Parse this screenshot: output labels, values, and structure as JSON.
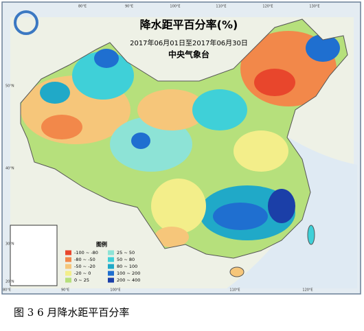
{
  "title": "降水距平百分率(%)",
  "date_range": "2017年06月01日至2017年06月30日",
  "agency": "中央气象台",
  "top_lon_labels": [
    "80°E",
    "90°E",
    "100°E",
    "110°E",
    "120°E",
    "130°E"
  ],
  "bottom_lon_labels": [
    "80°E",
    "90°E",
    "100°E",
    "110°E",
    "120°E"
  ],
  "lat_labels": [
    "50°N",
    "40°N",
    "30°N",
    "20°N"
  ],
  "legend": {
    "title": "图例",
    "entries": [
      {
        "label": "-100 ~ -80",
        "color": "#e8462c"
      },
      {
        "label": "-80 ~ -50",
        "color": "#f2884a"
      },
      {
        "label": "-50 ~ -20",
        "color": "#f6c67a"
      },
      {
        "label": "-20 ~ 0",
        "color": "#f3ee8a"
      },
      {
        "label": "0 ~ 25",
        "color": "#b6e07c"
      },
      {
        "label": "25 ~ 50",
        "color": "#8de3d6"
      },
      {
        "label": "50 ~ 80",
        "color": "#3fd0d8"
      },
      {
        "label": "80 ~ 100",
        "color": "#20a9c8"
      },
      {
        "label": "100 ~ 200",
        "color": "#1f6fd0"
      },
      {
        "label": "200 ~ 400",
        "color": "#1b3fa8"
      }
    ]
  },
  "caption": "图 3 6 月降水距平百分率"
}
